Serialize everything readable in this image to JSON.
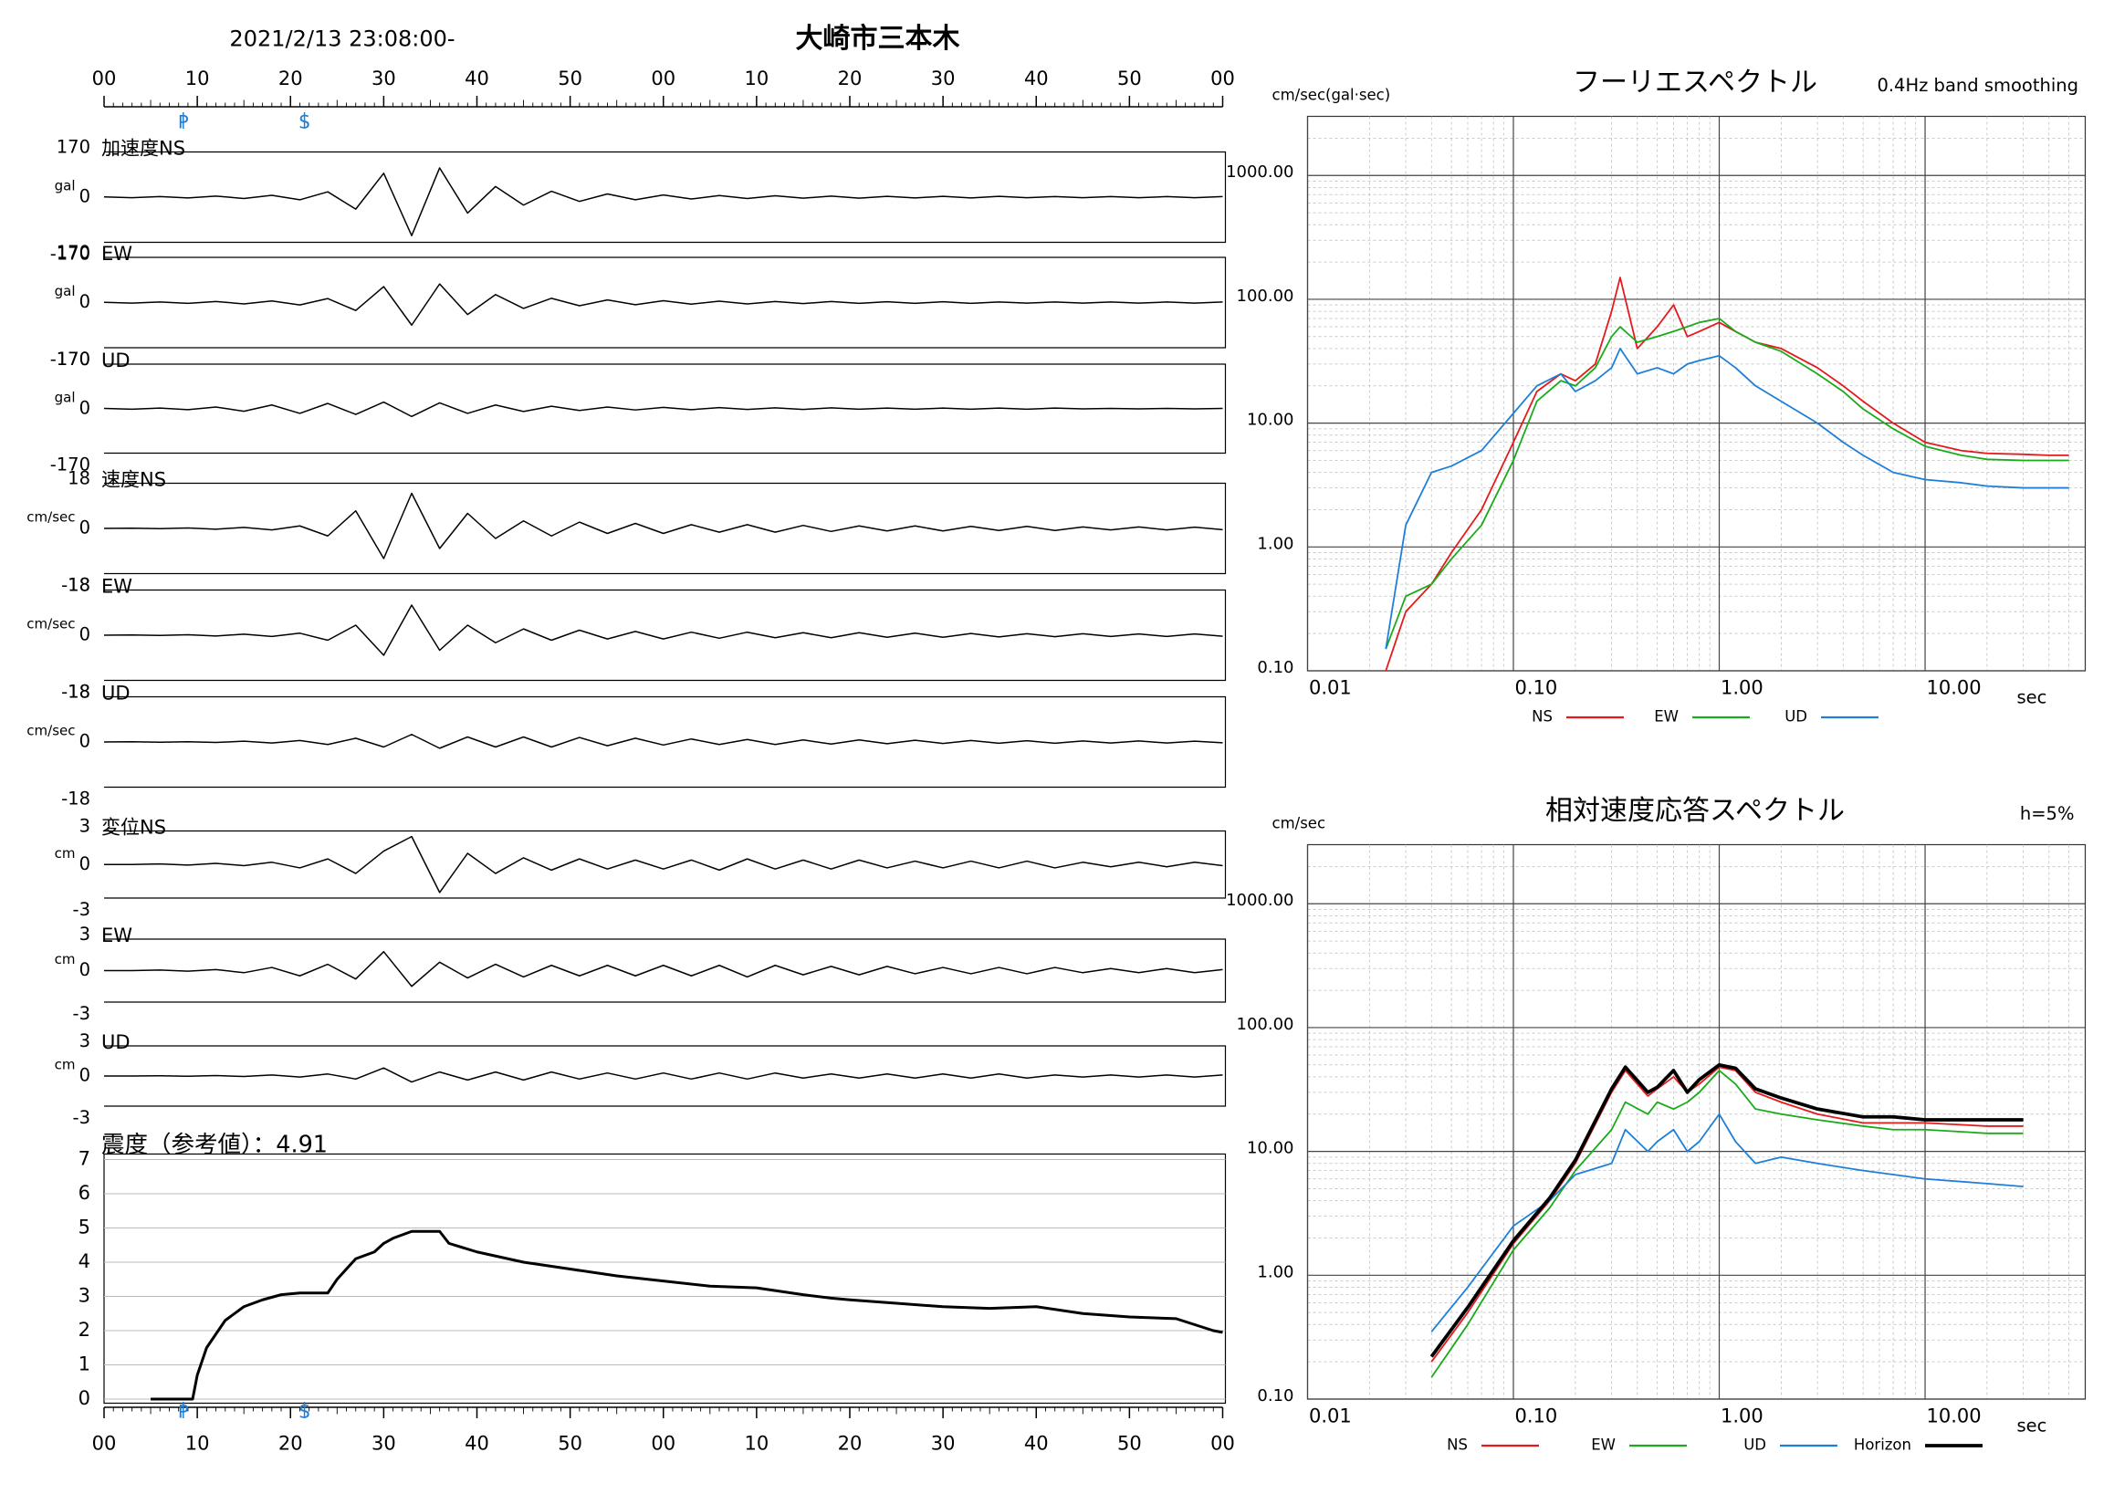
{
  "chart_data": [
    {
      "type": "waveform",
      "title": "大崎市三本木",
      "subtitle": "2021/2/13 23:08:00-",
      "color": "#000000",
      "xlim": [
        0,
        120
      ],
      "xticks": [
        {
          "value": 0,
          "label": "00"
        },
        10,
        20,
        30,
        40,
        50,
        {
          "value": 60,
          "label": "00"
        },
        {
          "value": 70,
          "label": "10"
        },
        {
          "value": 80,
          "label": "20"
        },
        {
          "value": 90,
          "label": "30"
        },
        {
          "value": 100,
          "label": "40"
        },
        {
          "value": 110,
          "label": "50"
        },
        {
          "value": 120,
          "label": "00"
        }
      ],
      "phases": [
        {
          "label": "P",
          "x": 8.5
        },
        {
          "label": "S",
          "x": 21.5
        }
      ],
      "phase_color": "#1e7fd8",
      "x": [
        0,
        3,
        6,
        9,
        12,
        15,
        18,
        21,
        24,
        27,
        30,
        33,
        36,
        39,
        42,
        45,
        48,
        51,
        54,
        57,
        60,
        63,
        66,
        69,
        72,
        75,
        78,
        81,
        84,
        87,
        90,
        93,
        96,
        99,
        102,
        105,
        108,
        111,
        114,
        117,
        120
      ],
      "panels": [
        {
          "label": "加速度NS",
          "unit": "gal",
          "ylim": [
            -170,
            170
          ],
          "yticks": [
            -170,
            0,
            170
          ],
          "values": [
            1,
            -2,
            2,
            -3,
            4,
            -5,
            7,
            -10,
            20,
            -45,
            90,
            -145,
            110,
            -60,
            40,
            -30,
            22,
            -16,
            12,
            -10,
            8,
            -7,
            6,
            -5,
            5,
            -4,
            4,
            -4,
            3,
            -3,
            3,
            -3,
            3,
            -2,
            2,
            -2,
            2,
            -2,
            2,
            -2,
            2
          ]
        },
        {
          "label": "EW",
          "unit": "gal",
          "ylim": [
            -170,
            170
          ],
          "yticks": [
            -170,
            0,
            170
          ],
          "values": [
            1,
            -2,
            2,
            -3,
            4,
            -5,
            6,
            -9,
            15,
            -30,
            60,
            -85,
            70,
            -45,
            30,
            -22,
            16,
            -12,
            10,
            -8,
            7,
            -6,
            5,
            -5,
            4,
            -4,
            4,
            -3,
            3,
            -3,
            3,
            -3,
            2,
            -2,
            2,
            -2,
            2,
            -2,
            2,
            -2,
            2
          ]
        },
        {
          "label": "UD",
          "unit": "gal",
          "ylim": [
            -170,
            170
          ],
          "yticks": [
            -170,
            0,
            170
          ],
          "values": [
            1,
            -2,
            2,
            -4,
            6,
            -10,
            14,
            -18,
            20,
            -22,
            25,
            -30,
            22,
            -18,
            14,
            -11,
            9,
            -7,
            6,
            -5,
            5,
            -4,
            4,
            -3,
            3,
            -3,
            3,
            -2,
            2,
            -2,
            2,
            -2,
            2,
            -2,
            2,
            -1,
            1,
            -1,
            1,
            -1,
            1
          ]
        },
        {
          "label": "速度NS",
          "unit": "cm/sec",
          "ylim": [
            -18,
            18
          ],
          "yticks": [
            -18,
            0,
            18
          ],
          "values": [
            0,
            0.1,
            -0.1,
            0.2,
            -0.3,
            0.4,
            -0.6,
            1,
            -3,
            7,
            -12,
            14,
            -8,
            6,
            -4,
            3,
            -3,
            2.5,
            -2,
            2,
            -2,
            1.5,
            -1.5,
            1.5,
            -1.5,
            1.2,
            -1.2,
            1,
            -1,
            1,
            -1,
            0.8,
            -0.8,
            0.8,
            -0.8,
            0.6,
            -0.6,
            0.6,
            -0.6,
            0.5,
            -0.5
          ]
        },
        {
          "label": "EW",
          "unit": "cm/sec",
          "ylim": [
            -18,
            18
          ],
          "yticks": [
            -18,
            0,
            18
          ],
          "values": [
            0,
            0.1,
            -0.1,
            0.2,
            -0.3,
            0.4,
            -0.5,
            0.8,
            -2,
            4,
            -8,
            12,
            -6,
            4,
            -3,
            2.5,
            -2,
            2,
            -1.5,
            1.5,
            -1.5,
            1.2,
            -1.2,
            1.2,
            -1,
            1,
            -1,
            1,
            -0.8,
            0.8,
            -0.8,
            0.7,
            -0.7,
            0.6,
            -0.6,
            0.6,
            -0.5,
            0.5,
            -0.5,
            0.5,
            -0.4
          ]
        },
        {
          "label": "UD",
          "unit": "cm/sec",
          "ylim": [
            -18,
            18
          ],
          "yticks": [
            -18,
            0,
            18
          ],
          "values": [
            0,
            0.1,
            -0.1,
            0.1,
            -0.2,
            0.3,
            -0.4,
            0.6,
            -1,
            1.5,
            -2,
            3,
            -2.5,
            2,
            -2,
            2,
            -2,
            1.8,
            -1.5,
            1.5,
            -1.2,
            1.2,
            -1,
            1,
            -1,
            0.8,
            -0.8,
            0.8,
            -0.7,
            0.7,
            -0.6,
            0.6,
            -0.5,
            0.5,
            -0.5,
            0.4,
            -0.4,
            0.4,
            -0.4,
            0.3,
            -0.3
          ]
        },
        {
          "label": "変位NS",
          "unit": "cm",
          "ylim": [
            -3,
            3
          ],
          "yticks": [
            -3,
            0,
            3
          ],
          "values": [
            0,
            0,
            0.05,
            -0.05,
            0.1,
            -0.1,
            0.2,
            -0.3,
            0.5,
            -0.8,
            1.2,
            2.5,
            -2.5,
            1,
            -0.8,
            0.6,
            -0.5,
            0.5,
            -0.4,
            0.4,
            -0.4,
            0.4,
            -0.5,
            0.5,
            -0.4,
            0.4,
            -0.4,
            0.4,
            -0.3,
            0.3,
            -0.3,
            0.3,
            -0.3,
            0.3,
            -0.3,
            0.2,
            -0.2,
            0.2,
            -0.2,
            0.2,
            -0.1
          ]
        },
        {
          "label": "EW",
          "unit": "cm",
          "ylim": [
            -3,
            3
          ],
          "yticks": [
            -3,
            0,
            3
          ],
          "values": [
            0,
            0,
            0.05,
            -0.05,
            0.1,
            -0.2,
            0.3,
            -0.5,
            0.6,
            -0.8,
            1.8,
            -1.5,
            0.8,
            -0.7,
            0.6,
            -0.6,
            0.5,
            -0.5,
            0.5,
            -0.5,
            0.5,
            -0.5,
            0.5,
            -0.6,
            0.5,
            -0.4,
            0.4,
            -0.4,
            0.4,
            -0.3,
            0.3,
            -0.3,
            0.3,
            -0.3,
            0.3,
            -0.2,
            0.2,
            -0.2,
            0.2,
            -0.2,
            0.1
          ]
        },
        {
          "label": "UD",
          "unit": "cm",
          "ylim": [
            -3,
            3
          ],
          "yticks": [
            -3,
            0,
            3
          ],
          "values": [
            0,
            0,
            0.02,
            -0.02,
            0.05,
            -0.05,
            0.1,
            -0.1,
            0.2,
            -0.3,
            0.8,
            -0.6,
            0.4,
            -0.4,
            0.4,
            -0.4,
            0.4,
            -0.3,
            0.3,
            -0.3,
            0.3,
            -0.3,
            0.3,
            -0.3,
            0.3,
            -0.2,
            0.2,
            -0.2,
            0.2,
            -0.2,
            0.2,
            -0.2,
            0.2,
            -0.2,
            0.1,
            -0.1,
            0.1,
            -0.1,
            0.1,
            -0.1,
            0.1
          ]
        }
      ]
    },
    {
      "type": "intensity",
      "title": "震度（参考値）：4.91",
      "color": "#000000",
      "grid": true,
      "xlim": [
        0,
        120
      ],
      "xticks": [
        {
          "value": 0,
          "label": "00"
        },
        10,
        20,
        30,
        40,
        50,
        {
          "value": 60,
          "label": "00"
        },
        {
          "value": 70,
          "label": "10"
        },
        {
          "value": 80,
          "label": "20"
        },
        {
          "value": 90,
          "label": "30"
        },
        {
          "value": 100,
          "label": "40"
        },
        {
          "value": 110,
          "label": "50"
        },
        {
          "value": 120,
          "label": "00"
        }
      ],
      "phases": [
        {
          "label": "P",
          "x": 8.5
        },
        {
          "label": "S",
          "x": 21.5
        }
      ],
      "phase_color": "#1e7fd8",
      "ylim": [
        0,
        7
      ],
      "yticks": [
        0,
        1,
        2,
        3,
        4,
        5,
        6,
        7
      ],
      "x": [
        5,
        9.5,
        10,
        11,
        13,
        15,
        17,
        19,
        21,
        23,
        24,
        25,
        27,
        29,
        30,
        31,
        33,
        36,
        37,
        40,
        45,
        50,
        55,
        60,
        65,
        70,
        75,
        78,
        80,
        85,
        90,
        95,
        100,
        105,
        110,
        115,
        119,
        120
      ],
      "values": [
        0,
        0,
        0.7,
        1.5,
        2.3,
        2.7,
        2.9,
        3.05,
        3.1,
        3.1,
        3.1,
        3.5,
        4.1,
        4.3,
        4.55,
        4.7,
        4.9,
        4.9,
        4.55,
        4.3,
        4.0,
        3.8,
        3.6,
        3.45,
        3.3,
        3.25,
        3.05,
        2.95,
        2.9,
        2.8,
        2.7,
        2.65,
        2.7,
        2.5,
        2.4,
        2.35,
        2.0,
        1.95
      ]
    },
    {
      "type": "spectrum",
      "title": "フーリエスペクトル",
      "subtitle": "0.4Hz band smoothing",
      "y_label": "cm/sec(gal·sec)",
      "x_label": "sec",
      "xlog": true,
      "ylog": true,
      "grid": true,
      "xlim": [
        0.01,
        60
      ],
      "ylim": [
        0.1,
        3000
      ],
      "xticks": [
        0.01,
        {
          "value": 0.1,
          "label": "0.10"
        },
        {
          "value": 1,
          "label": "1.00"
        },
        {
          "value": 10,
          "label": "10.00"
        }
      ],
      "yticks": [
        {
          "value": 0.1,
          "label": "0.10"
        },
        {
          "value": 1,
          "label": "1.00"
        },
        {
          "value": 10,
          "label": "10.00"
        },
        {
          "value": 100,
          "label": "100.00"
        },
        {
          "value": 1000,
          "label": "1000.00"
        }
      ],
      "x": [
        0.024,
        0.03,
        0.04,
        0.05,
        0.07,
        0.1,
        0.13,
        0.17,
        0.2,
        0.25,
        0.3,
        0.33,
        0.4,
        0.5,
        0.6,
        0.7,
        0.8,
        1,
        1.2,
        1.5,
        2,
        3,
        4,
        5,
        7,
        10,
        15,
        20,
        30,
        40,
        50
      ],
      "series": [
        {
          "name": "NS",
          "color": "#e41a1c",
          "values": [
            0.1,
            0.3,
            0.5,
            0.9,
            2,
            7,
            18,
            25,
            22,
            30,
            80,
            150,
            40,
            60,
            90,
            50,
            55,
            65,
            55,
            45,
            40,
            28,
            20,
            15,
            10,
            7,
            6,
            5.7,
            5.6,
            5.5,
            5.5
          ]
        },
        {
          "name": "EW",
          "color": "#1aab1a",
          "values": [
            0.15,
            0.4,
            0.5,
            0.8,
            1.5,
            5,
            15,
            22,
            20,
            28,
            50,
            60,
            45,
            50,
            55,
            60,
            65,
            70,
            55,
            45,
            38,
            25,
            18,
            13,
            9,
            6.5,
            5.5,
            5.1,
            5,
            5,
            5
          ]
        },
        {
          "name": "UD",
          "color": "#1e7fd8",
          "values": [
            0.15,
            1.5,
            4,
            4.5,
            6,
            12,
            20,
            25,
            18,
            22,
            28,
            40,
            25,
            28,
            25,
            30,
            32,
            35,
            28,
            20,
            15,
            10,
            7,
            5.5,
            4,
            3.5,
            3.3,
            3.1,
            3,
            3,
            3
          ]
        }
      ]
    },
    {
      "type": "spectrum",
      "title": "相対速度応答スペクトル",
      "subtitle": "h=5%",
      "y_label": "cm/sec",
      "x_label": "sec",
      "xlog": true,
      "ylog": true,
      "grid": true,
      "xlim": [
        0.01,
        60
      ],
      "ylim": [
        0.1,
        3000
      ],
      "xticks": [
        0.01,
        {
          "value": 0.1,
          "label": "0.10"
        },
        {
          "value": 1,
          "label": "1.00"
        },
        {
          "value": 10,
          "label": "10.00"
        }
      ],
      "yticks": [
        {
          "value": 0.1,
          "label": "0.10"
        },
        {
          "value": 1,
          "label": "1.00"
        },
        {
          "value": 10,
          "label": "10.00"
        },
        {
          "value": 100,
          "label": "100.00"
        },
        {
          "value": 1000,
          "label": "1000.00"
        }
      ],
      "x": [
        0.04,
        0.06,
        0.1,
        0.15,
        0.2,
        0.3,
        0.35,
        0.45,
        0.5,
        0.6,
        0.7,
        0.8,
        1,
        1.2,
        1.5,
        2,
        3,
        5,
        7,
        10,
        20,
        30
      ],
      "series": [
        {
          "name": "NS",
          "color": "#e41a1c",
          "values": [
            0.2,
            0.5,
            1.8,
            4,
            8,
            30,
            45,
            28,
            32,
            40,
            30,
            35,
            48,
            45,
            30,
            25,
            20,
            17,
            17,
            17,
            16,
            16
          ]
        },
        {
          "name": "EW",
          "color": "#1aab1a",
          "values": [
            0.15,
            0.4,
            1.6,
            3.5,
            7,
            15,
            25,
            20,
            25,
            22,
            25,
            30,
            45,
            35,
            22,
            20,
            18,
            16,
            15,
            15,
            14,
            14
          ]
        },
        {
          "name": "UD",
          "color": "#1e7fd8",
          "values": [
            0.35,
            0.8,
            2.5,
            4,
            6.5,
            8,
            15,
            10,
            12,
            15,
            10,
            12,
            20,
            12,
            8,
            9,
            8,
            7,
            6.5,
            6,
            5.5,
            5.2
          ]
        },
        {
          "name": "Horizon",
          "color": "#000000",
          "width": 2.5,
          "values": [
            0.22,
            0.55,
            1.9,
            4.2,
            8.5,
            32,
            48,
            30,
            33,
            45,
            30,
            38,
            50,
            47,
            32,
            27,
            22,
            19,
            19,
            18,
            18,
            18
          ]
        }
      ]
    }
  ]
}
